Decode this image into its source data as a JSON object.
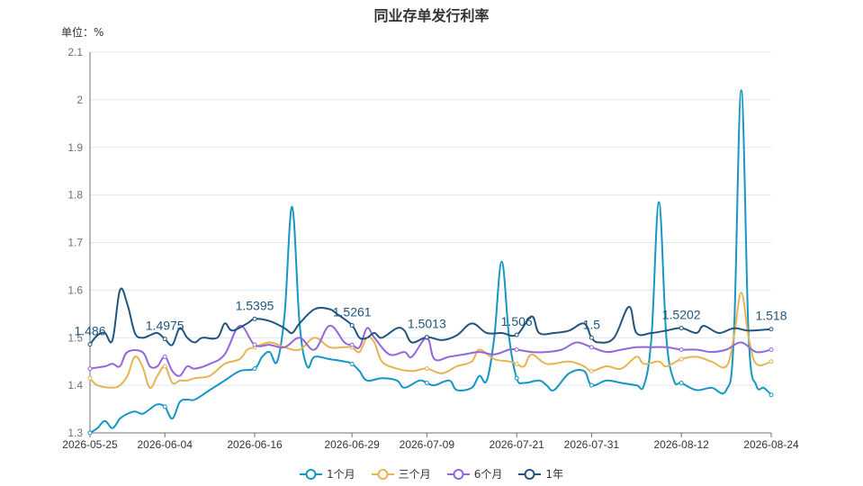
{
  "colors": {
    "axis": "#6E7079",
    "grid": "#E0E6F1",
    "series": [
      "#1696c4",
      "#e6b451",
      "#9466dc",
      "#21557f"
    ]
  },
  "chart_data": {
    "type": "line",
    "title": "同业存单发行利率",
    "unit_label": "单位：%",
    "ylim": [
      1.3,
      2.1
    ],
    "yticks": [
      "1.3",
      "1.4",
      "1.5",
      "1.6",
      "1.7",
      "1.8",
      "1.9",
      "2",
      "2.1"
    ],
    "xticks": [
      "2026-05-25",
      "2026-06-04",
      "2026-06-16",
      "2026-06-29",
      "2026-07-09",
      "2026-07-21",
      "2026-07-31",
      "2026-08-12",
      "2026-08-24"
    ],
    "x_range": [
      "2026-05-25",
      "2026-08-24"
    ],
    "grid": true,
    "legend_position": "bottom",
    "series": [
      {
        "name": "1个月",
        "smooth": true,
        "points": [
          [
            "2026-05-25",
            1.3
          ],
          [
            "2026-05-26",
            1.31
          ],
          [
            "2026-05-27",
            1.325
          ],
          [
            "2026-05-28",
            1.31
          ],
          [
            "2026-05-29",
            1.33
          ],
          [
            "2026-05-30",
            1.34
          ],
          [
            "2026-05-31",
            1.345
          ],
          [
            "2026-06-01",
            1.34
          ],
          [
            "2026-06-02",
            1.35
          ],
          [
            "2026-06-03",
            1.36
          ],
          [
            "2026-06-04",
            1.355
          ],
          [
            "2026-06-05",
            1.33
          ],
          [
            "2026-06-06",
            1.365
          ],
          [
            "2026-06-07",
            1.37
          ],
          [
            "2026-06-08",
            1.37
          ],
          [
            "2026-06-10",
            1.39
          ],
          [
            "2026-06-12",
            1.41
          ],
          [
            "2026-06-14",
            1.43
          ],
          [
            "2026-06-16",
            1.435
          ],
          [
            "2026-06-17",
            1.46
          ],
          [
            "2026-06-18",
            1.47
          ],
          [
            "2026-06-19",
            1.45
          ],
          [
            "2026-06-20",
            1.55
          ],
          [
            "2026-06-21",
            1.775
          ],
          [
            "2026-06-22",
            1.53
          ],
          [
            "2026-06-23",
            1.44
          ],
          [
            "2026-06-24",
            1.46
          ],
          [
            "2026-06-26",
            1.455
          ],
          [
            "2026-06-28",
            1.45
          ],
          [
            "2026-06-29",
            1.445
          ],
          [
            "2026-06-30",
            1.43
          ],
          [
            "2026-07-01",
            1.41
          ],
          [
            "2026-07-03",
            1.415
          ],
          [
            "2026-07-05",
            1.41
          ],
          [
            "2026-07-06",
            1.395
          ],
          [
            "2026-07-08",
            1.41
          ],
          [
            "2026-07-09",
            1.405
          ],
          [
            "2026-07-10",
            1.4
          ],
          [
            "2026-07-12",
            1.41
          ],
          [
            "2026-07-13",
            1.39
          ],
          [
            "2026-07-15",
            1.395
          ],
          [
            "2026-07-16",
            1.42
          ],
          [
            "2026-07-17",
            1.41
          ],
          [
            "2026-07-18",
            1.5
          ],
          [
            "2026-07-19",
            1.66
          ],
          [
            "2026-07-20",
            1.5
          ],
          [
            "2026-07-21",
            1.415
          ],
          [
            "2026-07-22",
            1.405
          ],
          [
            "2026-07-24",
            1.41
          ],
          [
            "2026-07-25",
            1.4
          ],
          [
            "2026-07-26",
            1.39
          ],
          [
            "2026-07-28",
            1.425
          ],
          [
            "2026-07-30",
            1.43
          ],
          [
            "2026-07-31",
            1.4
          ],
          [
            "2026-08-02",
            1.41
          ],
          [
            "2026-08-04",
            1.405
          ],
          [
            "2026-08-06",
            1.4
          ],
          [
            "2026-08-07",
            1.4
          ],
          [
            "2026-08-08",
            1.5
          ],
          [
            "2026-08-09",
            1.785
          ],
          [
            "2026-08-10",
            1.5
          ],
          [
            "2026-08-11",
            1.41
          ],
          [
            "2026-08-12",
            1.405
          ],
          [
            "2026-08-14",
            1.39
          ],
          [
            "2026-08-16",
            1.395
          ],
          [
            "2026-08-18",
            1.39
          ],
          [
            "2026-08-19",
            1.5
          ],
          [
            "2026-08-20",
            2.02
          ],
          [
            "2026-08-21",
            1.5
          ],
          [
            "2026-08-22",
            1.4
          ],
          [
            "2026-08-23",
            1.395
          ],
          [
            "2026-08-24",
            1.38
          ]
        ]
      },
      {
        "name": "三个月",
        "smooth": true,
        "points": [
          [
            "2026-05-25",
            1.415
          ],
          [
            "2026-05-26",
            1.4
          ],
          [
            "2026-05-28",
            1.395
          ],
          [
            "2026-05-29",
            1.4
          ],
          [
            "2026-05-30",
            1.42
          ],
          [
            "2026-05-31",
            1.46
          ],
          [
            "2026-06-01",
            1.44
          ],
          [
            "2026-06-02",
            1.395
          ],
          [
            "2026-06-03",
            1.42
          ],
          [
            "2026-06-04",
            1.44
          ],
          [
            "2026-06-05",
            1.405
          ],
          [
            "2026-06-06",
            1.41
          ],
          [
            "2026-06-07",
            1.41
          ],
          [
            "2026-06-08",
            1.415
          ],
          [
            "2026-06-10",
            1.42
          ],
          [
            "2026-06-12",
            1.445
          ],
          [
            "2026-06-14",
            1.455
          ],
          [
            "2026-06-15",
            1.475
          ],
          [
            "2026-06-16",
            1.48
          ],
          [
            "2026-06-18",
            1.49
          ],
          [
            "2026-06-20",
            1.48
          ],
          [
            "2026-06-22",
            1.475
          ],
          [
            "2026-06-24",
            1.5
          ],
          [
            "2026-06-26",
            1.48
          ],
          [
            "2026-06-28",
            1.48
          ],
          [
            "2026-06-29",
            1.48
          ],
          [
            "2026-06-30",
            1.47
          ],
          [
            "2026-07-01",
            1.5
          ],
          [
            "2026-07-02",
            1.49
          ],
          [
            "2026-07-03",
            1.45
          ],
          [
            "2026-07-05",
            1.435
          ],
          [
            "2026-07-07",
            1.43
          ],
          [
            "2026-07-09",
            1.435
          ],
          [
            "2026-07-11",
            1.425
          ],
          [
            "2026-07-13",
            1.44
          ],
          [
            "2026-07-15",
            1.45
          ],
          [
            "2026-07-16",
            1.475
          ],
          [
            "2026-07-18",
            1.455
          ],
          [
            "2026-07-20",
            1.45
          ],
          [
            "2026-07-21",
            1.445
          ],
          [
            "2026-07-22",
            1.44
          ],
          [
            "2026-07-23",
            1.465
          ],
          [
            "2026-07-25",
            1.445
          ],
          [
            "2026-07-28",
            1.45
          ],
          [
            "2026-07-30",
            1.44
          ],
          [
            "2026-07-31",
            1.43
          ],
          [
            "2026-08-02",
            1.44
          ],
          [
            "2026-08-04",
            1.435
          ],
          [
            "2026-08-06",
            1.46
          ],
          [
            "2026-08-07",
            1.445
          ],
          [
            "2026-08-09",
            1.45
          ],
          [
            "2026-08-10",
            1.44
          ],
          [
            "2026-08-12",
            1.455
          ],
          [
            "2026-08-14",
            1.46
          ],
          [
            "2026-08-16",
            1.45
          ],
          [
            "2026-08-18",
            1.44
          ],
          [
            "2026-08-19",
            1.5
          ],
          [
            "2026-08-20",
            1.595
          ],
          [
            "2026-08-21",
            1.5
          ],
          [
            "2026-08-22",
            1.445
          ],
          [
            "2026-08-24",
            1.45
          ]
        ]
      },
      {
        "name": "6个月",
        "smooth": true,
        "points": [
          [
            "2026-05-25",
            1.435
          ],
          [
            "2026-05-27",
            1.44
          ],
          [
            "2026-05-28",
            1.445
          ],
          [
            "2026-05-29",
            1.44
          ],
          [
            "2026-05-30",
            1.47
          ],
          [
            "2026-06-01",
            1.47
          ],
          [
            "2026-06-02",
            1.44
          ],
          [
            "2026-06-03",
            1.44
          ],
          [
            "2026-06-04",
            1.46
          ],
          [
            "2026-06-05",
            1.43
          ],
          [
            "2026-06-06",
            1.42
          ],
          [
            "2026-06-07",
            1.44
          ],
          [
            "2026-06-08",
            1.435
          ],
          [
            "2026-06-10",
            1.445
          ],
          [
            "2026-06-12",
            1.465
          ],
          [
            "2026-06-14",
            1.525
          ],
          [
            "2026-06-16",
            1.485
          ],
          [
            "2026-06-18",
            1.485
          ],
          [
            "2026-06-20",
            1.48
          ],
          [
            "2026-06-22",
            1.5
          ],
          [
            "2026-06-24",
            1.475
          ],
          [
            "2026-06-26",
            1.525
          ],
          [
            "2026-06-28",
            1.49
          ],
          [
            "2026-06-29",
            1.485
          ],
          [
            "2026-06-30",
            1.48
          ],
          [
            "2026-07-01",
            1.52
          ],
          [
            "2026-07-02",
            1.5
          ],
          [
            "2026-07-04",
            1.465
          ],
          [
            "2026-07-06",
            1.47
          ],
          [
            "2026-07-07",
            1.46
          ],
          [
            "2026-07-09",
            1.5
          ],
          [
            "2026-07-10",
            1.455
          ],
          [
            "2026-07-12",
            1.46
          ],
          [
            "2026-07-14",
            1.465
          ],
          [
            "2026-07-16",
            1.47
          ],
          [
            "2026-07-18",
            1.465
          ],
          [
            "2026-07-20",
            1.475
          ],
          [
            "2026-07-21",
            1.475
          ],
          [
            "2026-07-23",
            1.47
          ],
          [
            "2026-07-25",
            1.47
          ],
          [
            "2026-07-27",
            1.475
          ],
          [
            "2026-07-29",
            1.49
          ],
          [
            "2026-07-31",
            1.48
          ],
          [
            "2026-08-02",
            1.47
          ],
          [
            "2026-08-04",
            1.475
          ],
          [
            "2026-08-06",
            1.48
          ],
          [
            "2026-08-08",
            1.48
          ],
          [
            "2026-08-10",
            1.48
          ],
          [
            "2026-08-12",
            1.475
          ],
          [
            "2026-08-14",
            1.475
          ],
          [
            "2026-08-16",
            1.47
          ],
          [
            "2026-08-18",
            1.475
          ],
          [
            "2026-08-20",
            1.49
          ],
          [
            "2026-08-22",
            1.47
          ],
          [
            "2026-08-24",
            1.475
          ]
        ]
      },
      {
        "name": "1年",
        "smooth": true,
        "points": [
          [
            "2026-05-25",
            1.486
          ],
          [
            "2026-05-26",
            1.505
          ],
          [
            "2026-05-27",
            1.51
          ],
          [
            "2026-05-28",
            1.495
          ],
          [
            "2026-05-29",
            1.6
          ],
          [
            "2026-05-30",
            1.57
          ],
          [
            "2026-05-31",
            1.51
          ],
          [
            "2026-06-01",
            1.5
          ],
          [
            "2026-06-02",
            1.505
          ],
          [
            "2026-06-03",
            1.51
          ],
          [
            "2026-06-04",
            1.4975
          ],
          [
            "2026-06-05",
            1.485
          ],
          [
            "2026-06-06",
            1.52
          ],
          [
            "2026-06-07",
            1.5
          ],
          [
            "2026-06-08",
            1.49
          ],
          [
            "2026-06-09",
            1.5
          ],
          [
            "2026-06-11",
            1.5
          ],
          [
            "2026-06-12",
            1.53
          ],
          [
            "2026-06-13",
            1.515
          ],
          [
            "2026-06-15",
            1.53
          ],
          [
            "2026-06-16",
            1.5395
          ],
          [
            "2026-06-18",
            1.535
          ],
          [
            "2026-06-20",
            1.52
          ],
          [
            "2026-06-21",
            1.51
          ],
          [
            "2026-06-22",
            1.53
          ],
          [
            "2026-06-24",
            1.56
          ],
          [
            "2026-06-26",
            1.56
          ],
          [
            "2026-06-27",
            1.55
          ],
          [
            "2026-06-29",
            1.5261
          ],
          [
            "2026-06-30",
            1.5
          ],
          [
            "2026-07-01",
            1.5
          ],
          [
            "2026-07-02",
            1.51
          ],
          [
            "2026-07-03",
            1.5
          ],
          [
            "2026-07-05",
            1.52
          ],
          [
            "2026-07-06",
            1.515
          ],
          [
            "2026-07-07",
            1.49
          ],
          [
            "2026-07-09",
            1.5013
          ],
          [
            "2026-07-11",
            1.495
          ],
          [
            "2026-07-13",
            1.505
          ],
          [
            "2026-07-15",
            1.53
          ],
          [
            "2026-07-17",
            1.51
          ],
          [
            "2026-07-19",
            1.51
          ],
          [
            "2026-07-21",
            1.506
          ],
          [
            "2026-07-23",
            1.545
          ],
          [
            "2026-07-24",
            1.51
          ],
          [
            "2026-07-26",
            1.51
          ],
          [
            "2026-07-28",
            1.515
          ],
          [
            "2026-07-30",
            1.53
          ],
          [
            "2026-07-31",
            1.5
          ],
          [
            "2026-08-01",
            1.49
          ],
          [
            "2026-08-03",
            1.5
          ],
          [
            "2026-08-05",
            1.565
          ],
          [
            "2026-08-06",
            1.51
          ],
          [
            "2026-08-08",
            1.51
          ],
          [
            "2026-08-10",
            1.515
          ],
          [
            "2026-08-12",
            1.5202
          ],
          [
            "2026-08-14",
            1.51
          ],
          [
            "2026-08-15",
            1.525
          ],
          [
            "2026-08-17",
            1.51
          ],
          [
            "2026-08-19",
            1.52
          ],
          [
            "2026-08-21",
            1.515
          ],
          [
            "2026-08-24",
            1.518
          ]
        ]
      }
    ],
    "annotated_points": [
      {
        "date": "2026-05-25",
        "value": 1.486,
        "label": "1.486"
      },
      {
        "date": "2026-06-04",
        "value": 1.4975,
        "label": "1.4975"
      },
      {
        "date": "2026-06-16",
        "value": 1.5395,
        "label": "1.5395"
      },
      {
        "date": "2026-06-29",
        "value": 1.5261,
        "label": "1.5261"
      },
      {
        "date": "2026-07-09",
        "value": 1.5013,
        "label": "1.5013"
      },
      {
        "date": "2026-07-21",
        "value": 1.506,
        "label": "1.506"
      },
      {
        "date": "2026-07-31",
        "value": 1.5,
        "label": "1.5"
      },
      {
        "date": "2026-08-12",
        "value": 1.5202,
        "label": "1.5202"
      },
      {
        "date": "2026-08-24",
        "value": 1.518,
        "label": "1.518"
      }
    ],
    "legend": [
      "1个月",
      "三个月",
      "6个月",
      "1年"
    ]
  }
}
